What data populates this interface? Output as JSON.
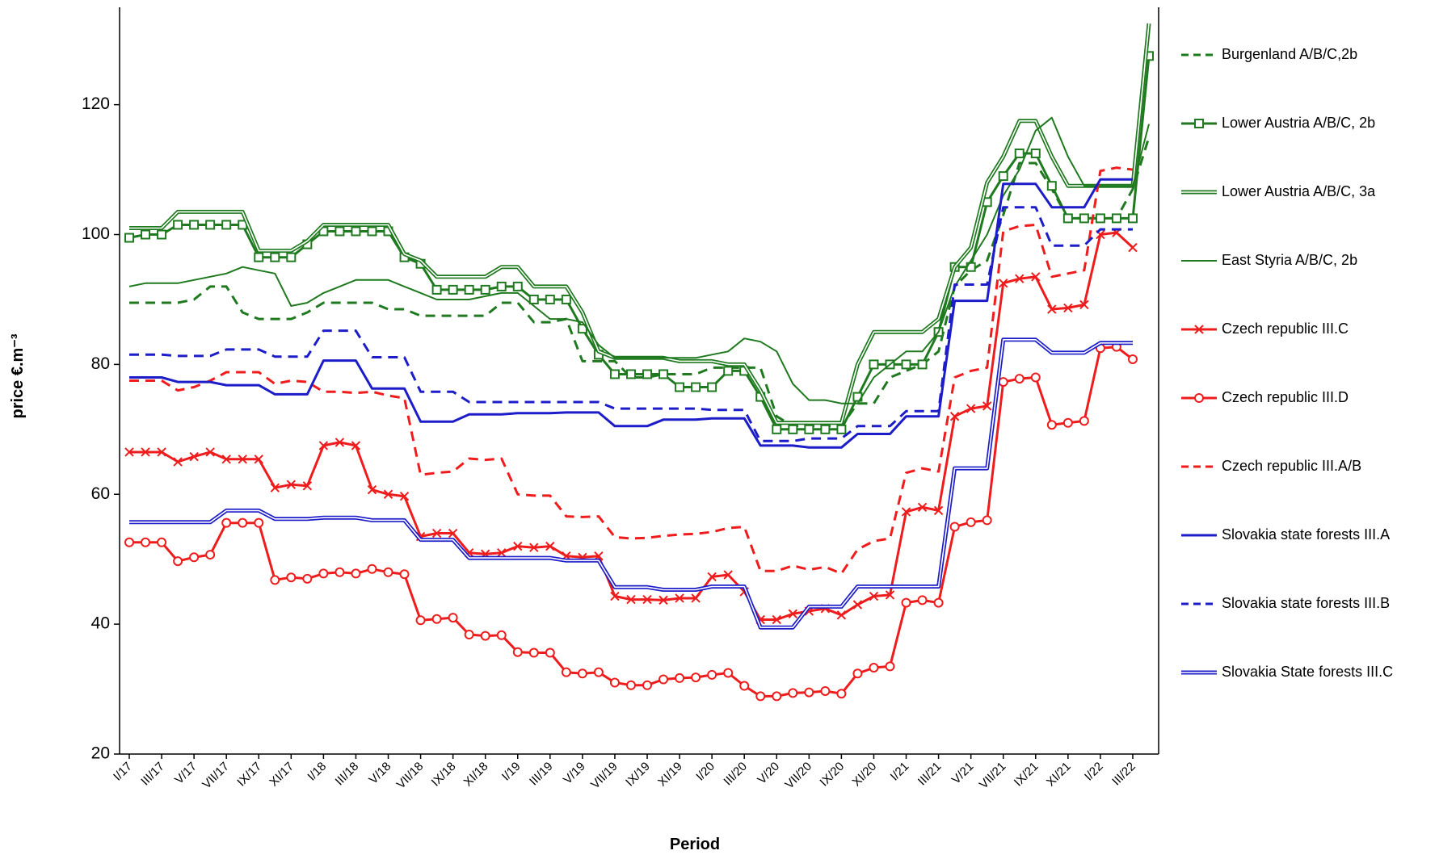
{
  "chart_data": {
    "type": "line",
    "x_label": "Period",
    "y_label": "price €.m⁻³",
    "ylim": [
      20,
      135
    ],
    "yticks": [
      20,
      40,
      60,
      80,
      100,
      120
    ],
    "categories": [
      "I/17",
      null,
      "III/17",
      null,
      "V/17",
      null,
      "VII/17",
      null,
      "IX/17",
      null,
      "XI/17",
      null,
      "I/18",
      null,
      "III/18",
      null,
      "V/18",
      null,
      "VII/18",
      null,
      "IX/18",
      null,
      "XI/18",
      null,
      "I/19",
      null,
      "III/19",
      null,
      "V/19",
      null,
      "VII/19",
      null,
      "IX/19",
      null,
      "XI/19",
      null,
      "I/20",
      null,
      "III/20",
      null,
      "V/20",
      null,
      "VII/20",
      null,
      "IX/20",
      null,
      "XI/20",
      null,
      "I/21",
      null,
      "III/21",
      null,
      "V/21",
      null,
      "VII/21",
      null,
      "IX/21",
      null,
      "XI/21",
      null,
      "I/22",
      null,
      "III/22",
      null
    ],
    "series": [
      {
        "name": "Burgenland A/B/C,2b",
        "color": "#1f7a1f",
        "style": "dashed",
        "marker": null,
        "values": [
          89.5,
          89.5,
          89.5,
          89.5,
          90,
          92,
          92,
          88,
          87,
          87,
          87,
          88,
          89.5,
          89.5,
          89.5,
          89.5,
          88.5,
          88.5,
          87.5,
          87.5,
          87.5,
          87.5,
          87.5,
          89.5,
          89.5,
          86.5,
          86.5,
          87,
          80.5,
          80.5,
          80.5,
          78,
          78,
          78.5,
          78.5,
          78.5,
          79.5,
          79.5,
          79.5,
          79.5,
          72,
          70.5,
          70.5,
          70.5,
          70.5,
          74,
          74,
          78,
          79,
          80,
          82,
          92,
          94.5,
          96,
          103,
          111,
          111,
          107,
          102.5,
          102.5,
          102.5,
          102.5,
          107,
          115
        ]
      },
      {
        "name": "Lower Austria A/B/C, 2b",
        "color": "#1f7a1f",
        "style": "solid",
        "marker": "square",
        "values": [
          99.5,
          100,
          100,
          101.5,
          101.5,
          101.5,
          101.5,
          101.5,
          96.5,
          96.5,
          96.5,
          98.5,
          100.5,
          100.5,
          100.5,
          100.5,
          100.5,
          96.5,
          95.5,
          91.5,
          91.5,
          91.5,
          91.5,
          92,
          92,
          90,
          90,
          90,
          85.5,
          81.5,
          78.5,
          78.5,
          78.5,
          78.5,
          76.5,
          76.5,
          76.5,
          79,
          79,
          75,
          70,
          70,
          70,
          70,
          70,
          75,
          80,
          80,
          80,
          80,
          85,
          95,
          95,
          105,
          109,
          112.5,
          112.5,
          107.5,
          102.5,
          102.5,
          102.5,
          102.5,
          102.5,
          127.5
        ]
      },
      {
        "name": "Lower Austria A/B/C, 3a",
        "color": "#1f7a1f",
        "style": "double",
        "marker": null,
        "values": [
          101,
          101,
          101,
          103.5,
          103.5,
          103.5,
          103.5,
          103.5,
          97.5,
          97.5,
          97.5,
          99,
          101.5,
          101.5,
          101.5,
          101.5,
          101.5,
          97,
          96,
          93.5,
          93.5,
          93.5,
          93.5,
          95,
          95,
          92,
          92,
          92,
          88,
          82,
          81,
          81,
          81,
          81,
          80.5,
          80.5,
          80.5,
          80,
          80,
          76,
          71,
          71,
          71,
          71,
          71,
          80,
          85,
          85,
          85,
          85,
          87,
          95,
          98,
          108,
          112,
          117.5,
          117.5,
          112,
          107.5,
          107.5,
          107.5,
          107.5,
          107.5,
          132.5
        ]
      },
      {
        "name": "East Styria A/B/C, 2b",
        "color": "#1f7a1f",
        "style": "thin",
        "marker": null,
        "values": [
          92,
          92.5,
          92.5,
          92.5,
          93,
          93.5,
          94,
          95,
          94.5,
          94,
          89,
          89.5,
          91,
          92,
          93,
          93,
          93,
          92,
          91,
          90,
          90,
          90,
          90.5,
          91,
          91,
          89,
          87,
          87,
          86.5,
          83,
          81,
          81,
          81,
          81,
          81,
          81,
          81.5,
          82,
          84,
          83.5,
          82,
          77,
          74.5,
          74.5,
          74,
          74,
          78,
          80,
          82,
          82,
          85,
          92,
          96,
          100,
          106,
          110,
          116,
          118,
          112,
          107.5,
          107.5,
          107.5,
          107.5,
          117
        ]
      },
      {
        "name": "Czech republic III.C",
        "color": "#ee1c1c",
        "style": "solid",
        "marker": "x",
        "values": [
          66.5,
          66.5,
          66.5,
          65,
          65.8,
          66.5,
          65.4,
          65.4,
          65.4,
          61,
          61.5,
          61.3,
          67.5,
          68,
          67.5,
          60.7,
          60,
          59.7,
          53.5,
          54,
          54,
          51,
          50.8,
          51,
          52,
          51.8,
          52,
          50.5,
          50.3,
          50.5,
          44.3,
          43.8,
          43.8,
          43.7,
          44,
          44,
          47.3,
          47.6,
          45,
          40.7,
          40.7,
          41.6,
          42,
          42.4,
          41.4,
          43,
          44.3,
          44.5,
          57.3,
          58,
          57.5,
          72,
          73.2,
          73.6,
          92.5,
          93.2,
          93.5,
          88.5,
          88.7,
          89.2,
          100,
          100.3,
          98,
          null
        ]
      },
      {
        "name": "Czech republic III.D",
        "color": "#ee1c1c",
        "style": "solid",
        "marker": "circle",
        "values": [
          52.6,
          52.6,
          52.6,
          49.7,
          50.3,
          50.7,
          55.6,
          55.6,
          55.6,
          46.8,
          47.2,
          47,
          47.8,
          48,
          47.8,
          48.5,
          48,
          47.7,
          40.6,
          40.8,
          41,
          38.4,
          38.2,
          38.3,
          35.7,
          35.6,
          35.6,
          32.6,
          32.4,
          32.6,
          31,
          30.6,
          30.6,
          31.5,
          31.7,
          31.8,
          32.2,
          32.5,
          30.5,
          28.9,
          28.9,
          29.4,
          29.5,
          29.7,
          29.3,
          32.4,
          33.3,
          33.5,
          43.3,
          43.7,
          43.3,
          55,
          55.7,
          56,
          77.3,
          77.8,
          78,
          70.7,
          71,
          71.3,
          82.5,
          82.7,
          80.8,
          null
        ]
      },
      {
        "name": "Czech republic III.A/B",
        "color": "#ee1c1c",
        "style": "dashed",
        "marker": null,
        "values": [
          77.5,
          77.5,
          77.5,
          76,
          76.5,
          77.5,
          78.8,
          78.8,
          78.8,
          77,
          77.5,
          77.3,
          75.8,
          75.8,
          75.6,
          75.8,
          75.2,
          74.8,
          63,
          63.3,
          63.5,
          65.5,
          65.3,
          65.5,
          60,
          59.8,
          59.8,
          56.6,
          56.5,
          56.6,
          53.4,
          53.2,
          53.3,
          53.6,
          53.8,
          53.9,
          54.2,
          54.8,
          55,
          48.2,
          48.2,
          49,
          48.4,
          48.8,
          47.8,
          51.5,
          52.8,
          53.2,
          63.3,
          64,
          63.5,
          78,
          79,
          79.5,
          100.5,
          101.3,
          101.5,
          93.5,
          94,
          94.5,
          109.8,
          110.3,
          110,
          null
        ]
      },
      {
        "name": "Slovakia state forests III.A",
        "color": "#1c1cc8",
        "style": "solid",
        "marker": null,
        "values": [
          78,
          78,
          78,
          77.3,
          77.3,
          77.3,
          76.8,
          76.8,
          76.8,
          75.4,
          75.4,
          75.4,
          80.6,
          80.6,
          80.6,
          76.3,
          76.3,
          76.3,
          71.2,
          71.2,
          71.2,
          72.3,
          72.3,
          72.3,
          72.5,
          72.5,
          72.5,
          72.6,
          72.6,
          72.6,
          70.5,
          70.5,
          70.5,
          71.5,
          71.5,
          71.5,
          71.7,
          71.7,
          71.7,
          67.5,
          67.5,
          67.5,
          67.2,
          67.2,
          67.2,
          69.3,
          69.3,
          69.3,
          72,
          72,
          72,
          89.8,
          89.8,
          89.8,
          107.8,
          107.8,
          107.8,
          104.2,
          104.2,
          104.2,
          108.5,
          108.5,
          108.5,
          null
        ]
      },
      {
        "name": "Slovakia state forests III.B",
        "color": "#1c1cc8",
        "style": "dashed",
        "marker": null,
        "values": [
          81.5,
          81.5,
          81.5,
          81.3,
          81.3,
          81.3,
          82.3,
          82.3,
          82.3,
          81.2,
          81.2,
          81.2,
          85.2,
          85.2,
          85.2,
          81.1,
          81.1,
          81.1,
          75.8,
          75.8,
          75.8,
          74.2,
          74.2,
          74.2,
          74.2,
          74.2,
          74.2,
          74.2,
          74.2,
          74.2,
          73.2,
          73.2,
          73.2,
          73.2,
          73.2,
          73.2,
          73,
          73,
          73,
          68.2,
          68.2,
          68.2,
          68.6,
          68.6,
          68.6,
          70.5,
          70.5,
          70.5,
          72.8,
          72.8,
          72.8,
          92.3,
          92.3,
          92.3,
          104.2,
          104.2,
          104.2,
          98.3,
          98.3,
          98.3,
          100.8,
          100.8,
          100.8,
          null
        ]
      },
      {
        "name": "Slovakia State forests III.C",
        "color": "#1c1cc8",
        "style": "double",
        "marker": null,
        "values": [
          55.7,
          55.7,
          55.7,
          55.7,
          55.7,
          55.7,
          57.5,
          57.5,
          57.5,
          56.2,
          56.2,
          56.2,
          56.4,
          56.4,
          56.4,
          56,
          56,
          56,
          53,
          53,
          53,
          50.2,
          50.2,
          50.2,
          50.2,
          50.2,
          50.2,
          49.8,
          49.8,
          49.8,
          45.7,
          45.7,
          45.7,
          45.3,
          45.3,
          45.3,
          45.8,
          45.8,
          45.8,
          39.5,
          39.5,
          39.5,
          42.7,
          42.7,
          42.7,
          45.8,
          45.8,
          45.8,
          45.8,
          45.8,
          45.8,
          64,
          64,
          64,
          83.8,
          83.8,
          83.8,
          81.8,
          81.8,
          81.8,
          83.3,
          83.3,
          83.3,
          null
        ]
      }
    ]
  }
}
